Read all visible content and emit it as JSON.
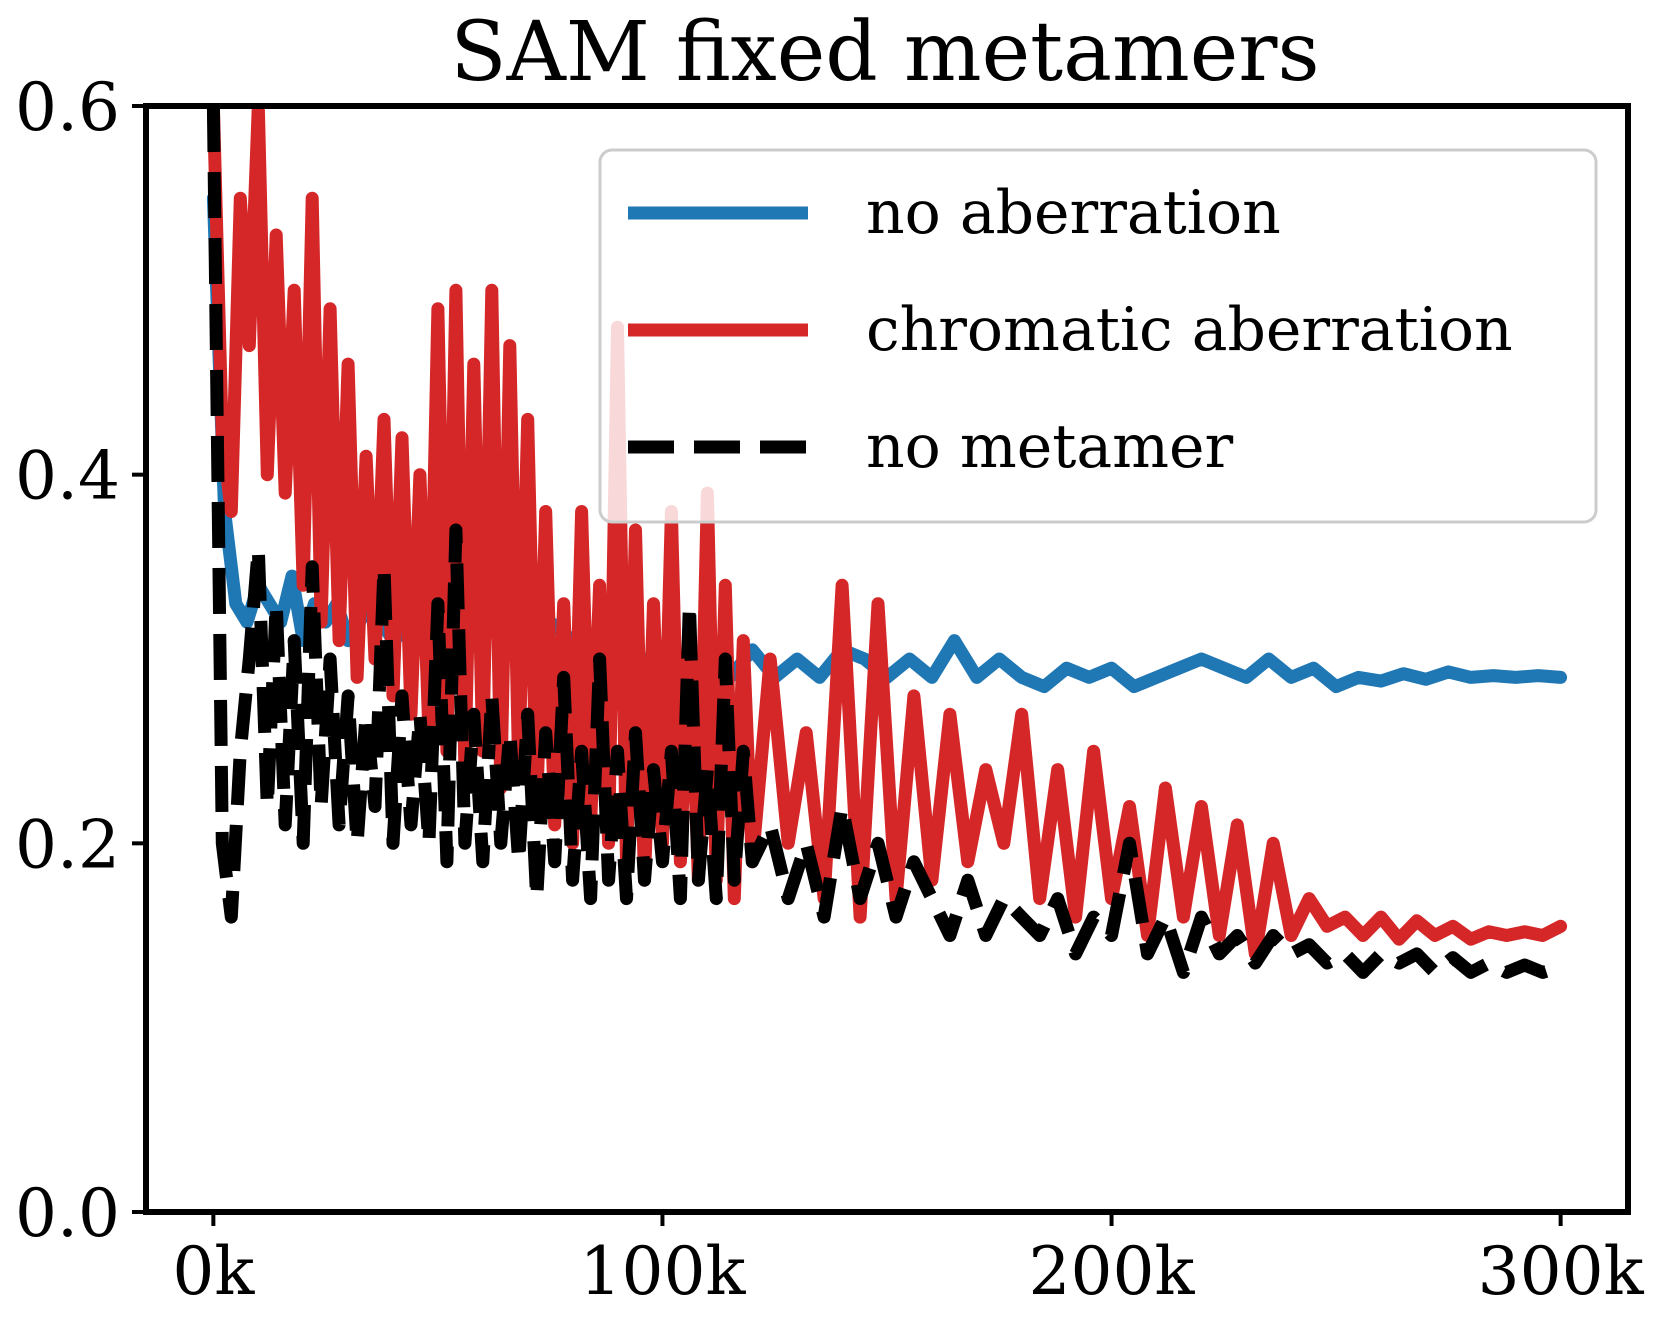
{
  "chart_data": {
    "type": "line",
    "title": "SAM fixed metamers",
    "xlabel": "",
    "ylabel": "",
    "xlim": [
      -15000,
      315000
    ],
    "ylim": [
      0,
      0.6
    ],
    "x_ticks": [
      0,
      100000,
      200000,
      300000
    ],
    "x_tick_labels": [
      "0k",
      "100k",
      "200k",
      "300k"
    ],
    "y_ticks": [
      0.0,
      0.2,
      0.4,
      0.6
    ],
    "y_tick_labels": [
      "0.0",
      "0.2",
      "0.4",
      "0.6"
    ],
    "grid": false,
    "legend_position": "top-right",
    "series": [
      {
        "name": "no aberration",
        "color": "#1f77b4",
        "dash": "solid",
        "x": [
          0,
          2500,
          5000,
          7500,
          10000,
          12500,
          15000,
          17500,
          20000,
          22500,
          25000,
          27500,
          30000,
          35000,
          40000,
          45000,
          50000,
          55000,
          60000,
          65000,
          70000,
          75000,
          80000,
          85000,
          90000,
          95000,
          100000,
          105000,
          110000,
          115000,
          120000,
          125000,
          130000,
          135000,
          140000,
          145000,
          150000,
          155000,
          160000,
          165000,
          170000,
          175000,
          180000,
          185000,
          190000,
          195000,
          200000,
          205000,
          210000,
          215000,
          220000,
          225000,
          230000,
          235000,
          240000,
          245000,
          250000,
          255000,
          260000,
          265000,
          270000,
          275000,
          280000,
          285000,
          290000,
          295000,
          300000
        ],
        "y": [
          0.55,
          0.38,
          0.33,
          0.32,
          0.34,
          0.33,
          0.32,
          0.345,
          0.31,
          0.33,
          0.32,
          0.33,
          0.31,
          0.33,
          0.31,
          0.32,
          0.31,
          0.32,
          0.31,
          0.33,
          0.3,
          0.32,
          0.31,
          0.3,
          0.31,
          0.3,
          0.3,
          0.29,
          0.3,
          0.29,
          0.305,
          0.29,
          0.3,
          0.29,
          0.305,
          0.3,
          0.29,
          0.3,
          0.29,
          0.31,
          0.29,
          0.3,
          0.29,
          0.285,
          0.295,
          0.29,
          0.295,
          0.285,
          0.29,
          0.295,
          0.3,
          0.295,
          0.29,
          0.3,
          0.29,
          0.295,
          0.285,
          0.29,
          0.288,
          0.292,
          0.289,
          0.293,
          0.29,
          0.291,
          0.29,
          0.291,
          0.29
        ]
      },
      {
        "name": "chromatic aberration",
        "color": "#d62728",
        "dash": "solid",
        "x": [
          0,
          2000,
          4000,
          6000,
          8000,
          10000,
          12000,
          14000,
          16000,
          18000,
          20000,
          22000,
          24000,
          26000,
          28000,
          30000,
          32000,
          34000,
          36000,
          38000,
          40000,
          42000,
          44000,
          46000,
          48000,
          50000,
          52000,
          54000,
          56000,
          58000,
          60000,
          62000,
          64000,
          66000,
          68000,
          70000,
          72000,
          74000,
          76000,
          78000,
          80000,
          82000,
          84000,
          86000,
          88000,
          90000,
          92000,
          94000,
          96000,
          98000,
          100000,
          102000,
          104000,
          106000,
          108000,
          110000,
          112000,
          114000,
          116000,
          118000,
          120000,
          124000,
          128000,
          132000,
          136000,
          140000,
          144000,
          148000,
          152000,
          156000,
          160000,
          164000,
          168000,
          172000,
          176000,
          180000,
          184000,
          188000,
          192000,
          196000,
          200000,
          204000,
          208000,
          212000,
          216000,
          220000,
          224000,
          228000,
          232000,
          236000,
          240000,
          244000,
          248000,
          252000,
          256000,
          260000,
          264000,
          268000,
          272000,
          276000,
          280000,
          284000,
          288000,
          292000,
          296000,
          300000
        ],
        "y": [
          0.6,
          0.42,
          0.38,
          0.55,
          0.47,
          0.6,
          0.4,
          0.53,
          0.39,
          0.5,
          0.34,
          0.55,
          0.32,
          0.49,
          0.31,
          0.46,
          0.29,
          0.41,
          0.3,
          0.43,
          0.28,
          0.42,
          0.27,
          0.4,
          0.26,
          0.49,
          0.25,
          0.5,
          0.24,
          0.46,
          0.25,
          0.5,
          0.23,
          0.47,
          0.24,
          0.43,
          0.22,
          0.38,
          0.21,
          0.33,
          0.2,
          0.38,
          0.21,
          0.34,
          0.2,
          0.48,
          0.19,
          0.37,
          0.18,
          0.33,
          0.2,
          0.38,
          0.19,
          0.32,
          0.18,
          0.39,
          0.18,
          0.34,
          0.17,
          0.31,
          0.19,
          0.3,
          0.2,
          0.26,
          0.17,
          0.34,
          0.16,
          0.33,
          0.17,
          0.28,
          0.18,
          0.27,
          0.19,
          0.24,
          0.2,
          0.27,
          0.17,
          0.24,
          0.16,
          0.25,
          0.17,
          0.22,
          0.15,
          0.23,
          0.16,
          0.22,
          0.15,
          0.21,
          0.14,
          0.2,
          0.15,
          0.17,
          0.155,
          0.16,
          0.15,
          0.16,
          0.148,
          0.158,
          0.15,
          0.155,
          0.148,
          0.152,
          0.15,
          0.152,
          0.15,
          0.155
        ]
      },
      {
        "name": "no metamer",
        "color": "#000000",
        "dash": "dashed",
        "x": [
          0,
          2000,
          4000,
          6000,
          8000,
          10000,
          12000,
          14000,
          16000,
          18000,
          20000,
          22000,
          24000,
          26000,
          28000,
          30000,
          32000,
          34000,
          36000,
          38000,
          40000,
          42000,
          44000,
          46000,
          48000,
          50000,
          52000,
          54000,
          56000,
          58000,
          60000,
          62000,
          64000,
          66000,
          68000,
          70000,
          72000,
          74000,
          76000,
          78000,
          80000,
          82000,
          84000,
          86000,
          88000,
          90000,
          92000,
          94000,
          96000,
          98000,
          100000,
          102000,
          104000,
          106000,
          108000,
          110000,
          112000,
          114000,
          116000,
          118000,
          120000,
          124000,
          128000,
          132000,
          136000,
          140000,
          144000,
          148000,
          152000,
          156000,
          160000,
          164000,
          168000,
          172000,
          176000,
          180000,
          184000,
          188000,
          192000,
          196000,
          200000,
          204000,
          208000,
          212000,
          216000,
          220000,
          224000,
          228000,
          232000,
          236000,
          240000,
          244000,
          248000,
          252000,
          256000,
          260000,
          264000,
          268000,
          272000,
          276000,
          280000,
          284000,
          288000,
          292000,
          296000,
          300000
        ],
        "y": [
          0.6,
          0.2,
          0.16,
          0.25,
          0.3,
          0.36,
          0.22,
          0.33,
          0.21,
          0.31,
          0.2,
          0.35,
          0.22,
          0.3,
          0.21,
          0.28,
          0.2,
          0.27,
          0.22,
          0.35,
          0.2,
          0.28,
          0.21,
          0.27,
          0.2,
          0.33,
          0.19,
          0.37,
          0.2,
          0.27,
          0.19,
          0.28,
          0.2,
          0.26,
          0.19,
          0.27,
          0.17,
          0.26,
          0.19,
          0.29,
          0.18,
          0.25,
          0.17,
          0.3,
          0.18,
          0.25,
          0.17,
          0.26,
          0.18,
          0.24,
          0.19,
          0.25,
          0.17,
          0.33,
          0.18,
          0.24,
          0.17,
          0.3,
          0.18,
          0.25,
          0.19,
          0.21,
          0.17,
          0.2,
          0.16,
          0.22,
          0.17,
          0.2,
          0.16,
          0.19,
          0.17,
          0.15,
          0.18,
          0.15,
          0.17,
          0.16,
          0.15,
          0.17,
          0.14,
          0.16,
          0.15,
          0.2,
          0.14,
          0.16,
          0.13,
          0.16,
          0.14,
          0.15,
          0.135,
          0.15,
          0.14,
          0.145,
          0.135,
          0.14,
          0.13,
          0.14,
          0.135,
          0.14,
          0.13,
          0.138,
          0.13,
          0.135,
          0.13,
          0.134,
          0.13,
          0.133
        ]
      }
    ]
  }
}
